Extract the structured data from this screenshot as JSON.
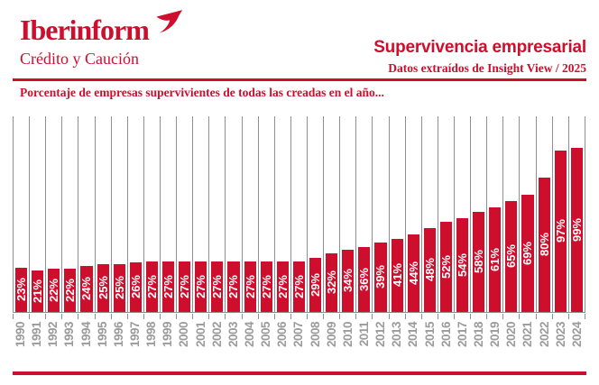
{
  "brand": {
    "name": "Iberinform",
    "tagline": "Crédito y Caución"
  },
  "header": {
    "title": "Supervivencia empresarial",
    "source": "Datos extraídos de Insight View / 2025"
  },
  "icons": {
    "logo_mark": "swallow-bird"
  },
  "colors": {
    "brand_red": "#CE0E2D",
    "axis_gray": "#8F8F8F",
    "year_label_gray": "#9B9B9B",
    "bar_value_label": "#FFFFFF"
  },
  "chart_data": {
    "type": "bar",
    "title": "Porcentaje de empresas supervivientes de todas las creadas en el año...",
    "categories": [
      "1990",
      "1991",
      "1992",
      "1993",
      "1994",
      "1995",
      "1996",
      "1997",
      "1998",
      "1999",
      "2000",
      "2001",
      "2002",
      "2003",
      "2004",
      "2005",
      "2006",
      "2007",
      "2008",
      "2009",
      "2010",
      "2011",
      "2012",
      "2013",
      "2014",
      "2015",
      "2016",
      "2017",
      "2018",
      "2019",
      "2020",
      "2021",
      "2022",
      "2023",
      "2024"
    ],
    "values": [
      23,
      21,
      22,
      22,
      24,
      25,
      25,
      26,
      27,
      27,
      27,
      27,
      27,
      27,
      27,
      27,
      27,
      27,
      29,
      32,
      34,
      36,
      39,
      41,
      44,
      48,
      52,
      54,
      58,
      61,
      65,
      69,
      80,
      97,
      99
    ],
    "unit": "%",
    "value_label_format": "inside-bar-vertical",
    "xlabel": "",
    "ylabel": "",
    "ylim": [
      0,
      118
    ],
    "grid": "vertical-column-separators",
    "legend": "none",
    "bar_color": "#CE0E2D"
  }
}
